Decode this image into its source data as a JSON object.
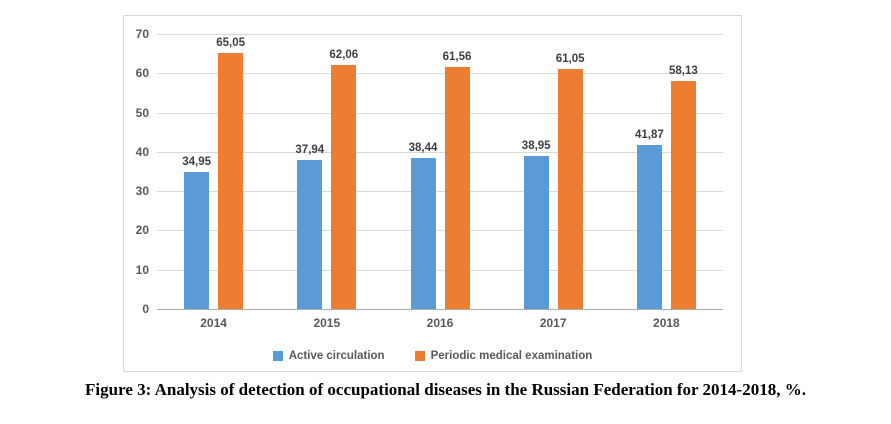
{
  "figure": {
    "caption": "Figure 3: Analysis of detection of occupational diseases in the Russian Federation for 2014-2018, %."
  },
  "chart_data": {
    "type": "bar",
    "title": "",
    "xlabel": "",
    "ylabel": "",
    "categories": [
      "2014",
      "2015",
      "2016",
      "2017",
      "2018"
    ],
    "series": [
      {
        "name": "Active circulation",
        "color": "#5B9BD5",
        "values": [
          34.95,
          37.94,
          38.44,
          38.95,
          41.87
        ],
        "labels": [
          "34,95",
          "37,94",
          "38,44",
          "38,95",
          "41,87"
        ]
      },
      {
        "name": "Periodic medical examination",
        "color": "#ED7D31",
        "values": [
          65.05,
          62.06,
          61.56,
          61.05,
          58.13
        ],
        "labels": [
          "65,05",
          "62,06",
          "61,56",
          "61,05",
          "58,13"
        ]
      }
    ],
    "ylim": [
      0,
      70
    ],
    "yticks": [
      0,
      10,
      20,
      30,
      40,
      50,
      60,
      70
    ],
    "grid": true,
    "legend_position": "bottom",
    "colors": {
      "grid": "#D9D9D9",
      "axis_line": "#ADADAD",
      "tick_label": "#595959",
      "data_label": "#3D3D46",
      "chart_border": "#D9D9D9"
    }
  }
}
